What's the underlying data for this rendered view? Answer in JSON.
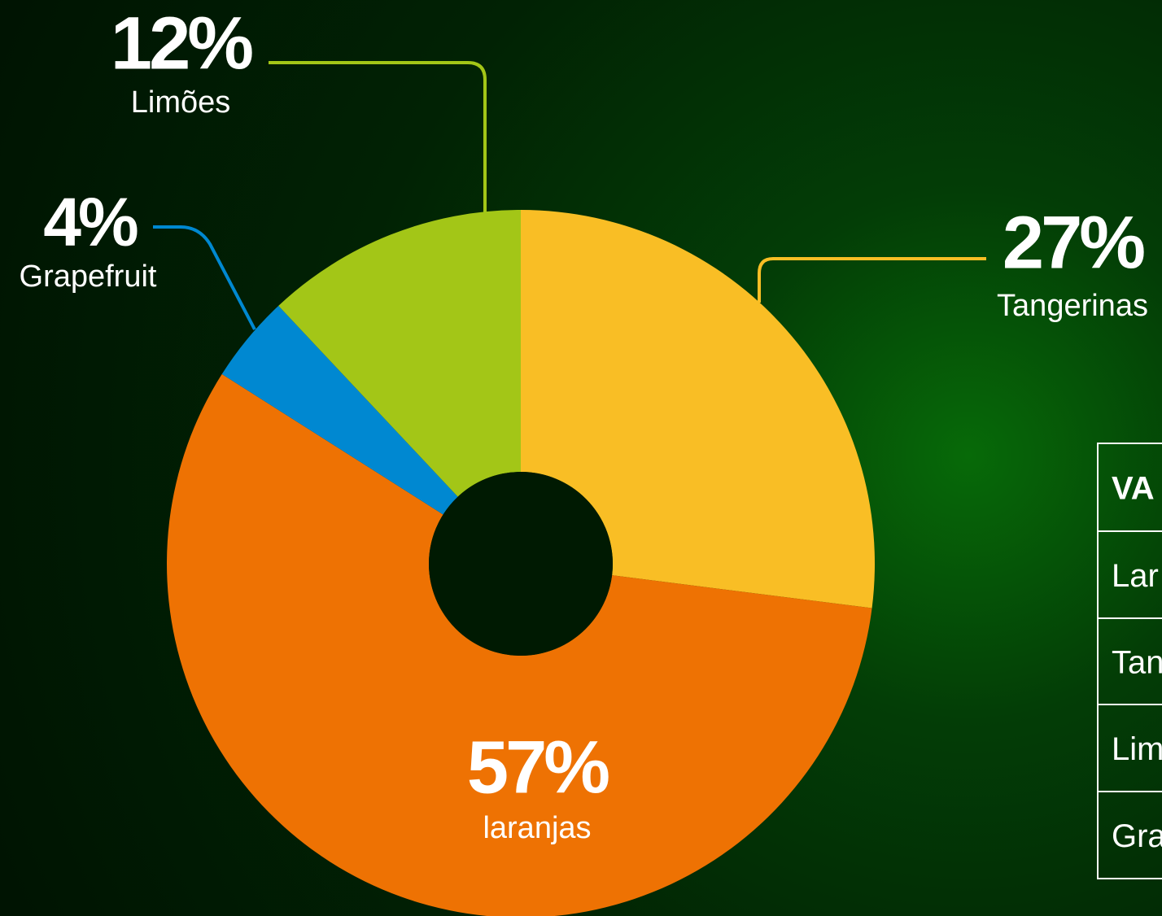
{
  "chart_data": {
    "type": "pie",
    "categories": [
      "Tangerinas",
      "laranjas",
      "Grapefruit",
      "Limões"
    ],
    "values": [
      27,
      57,
      4,
      12
    ],
    "value_labels": [
      "27%",
      "57%",
      "4%",
      "12%"
    ],
    "colors": [
      "#F9BE25",
      "#EE7203",
      "#0088D1",
      "#A3C617"
    ]
  },
  "table": {
    "header": "VA",
    "rows": [
      "Lar",
      "Tan",
      "Lim",
      "Gra"
    ]
  }
}
